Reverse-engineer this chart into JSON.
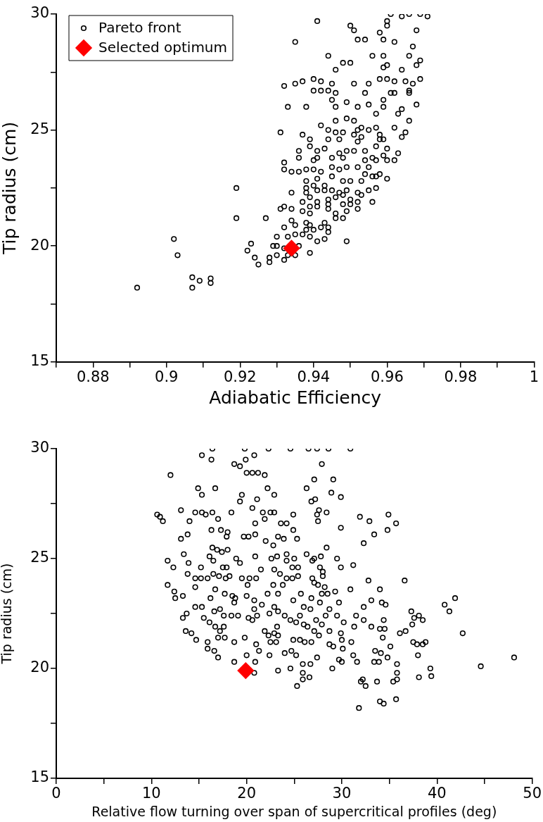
{
  "chart_data": [
    {
      "type": "scatter",
      "xlabel": "Adiabatic Efficiency",
      "ylabel": "Tip radius (cm)",
      "xlim": [
        0.87,
        1
      ],
      "ylim": [
        15,
        30
      ],
      "xticks": [
        {
          "value": 0.87,
          "label": null
        },
        0.88,
        {
          "value": 0.89,
          "label": null
        },
        0.9,
        {
          "value": 0.91,
          "label": null
        },
        0.92,
        {
          "value": 0.93,
          "label": null
        },
        0.94,
        {
          "value": 0.95,
          "label": null
        },
        0.96,
        {
          "value": 0.97,
          "label": null
        },
        0.98,
        {
          "value": 0.99,
          "label": null
        },
        1
      ],
      "yticks": [
        15,
        {
          "value": 17.5,
          "label": null
        },
        20,
        {
          "value": 22.5,
          "label": null
        },
        25,
        {
          "value": 27.5,
          "label": null
        },
        30
      ],
      "legend": "top left",
      "grid": false,
      "series": [
        {
          "name": "Pareto front",
          "color": "#000000",
          "marker": "circle",
          "x": [
            0.961,
            0.964,
            0.966,
            0.969,
            0.971,
            0.96,
            0.96,
            0.941,
            0.95,
            0.951,
            0.958,
            0.968,
            0.935,
            0.952,
            0.954,
            0.959,
            0.962,
            0.967,
            0.944,
            0.956,
            0.959,
            0.966,
            0.969,
            0.948,
            0.95,
            0.946,
            0.959,
            0.96,
            0.964,
            0.968,
            0.969,
            0.932,
            0.935,
            0.937,
            0.94,
            0.942,
            0.945,
            0.951,
            0.955,
            0.958,
            0.96,
            0.962,
            0.965,
            0.967,
            0.966,
            0.94,
            0.942,
            0.944,
            0.946,
            0.954,
            0.961,
            0.962,
            0.966,
            0.933,
            0.938,
            0.945,
            0.946,
            0.949,
            0.952,
            0.955,
            0.957,
            0.959,
            0.959,
            0.963,
            0.964,
            0.968,
            0.966,
            0.942,
            0.944,
            0.946,
            0.949,
            0.951,
            0.952,
            0.953,
            0.955,
            0.957,
            0.958,
            0.962,
            0.965,
            0.931,
            0.937,
            0.939,
            0.946,
            0.948,
            0.944,
            0.947,
            0.951,
            0.953,
            0.952,
            0.958,
            0.959,
            0.964,
            0.936,
            0.939,
            0.941,
            0.943,
            0.947,
            0.949,
            0.951,
            0.954,
            0.957,
            0.96,
            0.963,
            0.936,
            0.94,
            0.941,
            0.945,
            0.948,
            0.954,
            0.956,
            0.957,
            0.959,
            0.96,
            0.962,
            0.932,
            0.932,
            0.934,
            0.936,
            0.938,
            0.94,
            0.942,
            0.945,
            0.947,
            0.949,
            0.952,
            0.955,
            0.954,
            0.958,
            0.96,
            0.938,
            0.941,
            0.945,
            0.948,
            0.95,
            0.953,
            0.956,
            0.957,
            0.938,
            0.94,
            0.943,
            0.934,
            0.938,
            0.941,
            0.943,
            0.945,
            0.947,
            0.949,
            0.952,
            0.953,
            0.955,
            0.957,
            0.939,
            0.941,
            0.944,
            0.946,
            0.948,
            0.95,
            0.952,
            0.937,
            0.939,
            0.941,
            0.944,
            0.948,
            0.95,
            0.956,
            0.931,
            0.932,
            0.934,
            0.937,
            0.939,
            0.944,
            0.946,
            0.949,
            0.952,
            0.919,
            0.919,
            0.927,
            0.934,
            0.932,
            0.935,
            0.938,
            0.939,
            0.943,
            0.946,
            0.948,
            0.938,
            0.94,
            0.942,
            0.944,
            0.93,
            0.933,
            0.935,
            0.937,
            0.939,
            0.941,
            0.943,
            0.944,
            0.949,
            0.902,
            0.903,
            0.923,
            0.922,
            0.929,
            0.93,
            0.932,
            0.936,
            0.939,
            0.924,
            0.925,
            0.928,
            0.928,
            0.93,
            0.932,
            0.933,
            0.935,
            0.892,
            0.907,
            0.907,
            0.909,
            0.912,
            0.912
          ],
          "values": [
            30.0,
            29.9,
            30.0,
            30.0,
            29.9,
            29.7,
            29.5,
            29.7,
            29.5,
            29.3,
            29.2,
            29.3,
            28.8,
            28.9,
            28.9,
            28.9,
            28.8,
            28.6,
            28.2,
            28.2,
            28.2,
            28.2,
            28.0,
            27.9,
            27.9,
            27.6,
            27.7,
            27.8,
            27.6,
            27.8,
            27.2,
            26.9,
            27.0,
            27.1,
            27.2,
            27.1,
            27.0,
            27.0,
            27.0,
            27.2,
            27.2,
            27.1,
            27.1,
            27.0,
            26.7,
            26.7,
            26.7,
            26.7,
            26.6,
            26.6,
            26.6,
            26.6,
            26.6,
            26.0,
            26.0,
            26.3,
            26.0,
            26.2,
            26.0,
            26.1,
            25.7,
            26.0,
            26.3,
            25.7,
            25.9,
            26.1,
            25.4,
            25.2,
            25.0,
            25.4,
            25.5,
            25.4,
            25.0,
            25.1,
            25.0,
            25.1,
            24.8,
            25.1,
            24.9,
            24.9,
            24.8,
            24.6,
            24.9,
            24.9,
            24.6,
            24.6,
            24.8,
            24.7,
            24.5,
            24.6,
            24.6,
            24.7,
            24.1,
            24.3,
            24.1,
            24.2,
            24.0,
            24.1,
            24.1,
            24.1,
            24.3,
            24.2,
            24.0,
            23.8,
            23.7,
            23.8,
            23.8,
            23.8,
            23.7,
            23.8,
            23.7,
            23.9,
            23.7,
            23.7,
            23.6,
            23.3,
            23.2,
            23.2,
            23.3,
            23.3,
            23.2,
            23.4,
            23.3,
            23.4,
            23.4,
            23.4,
            23.1,
            23.1,
            22.9,
            22.8,
            22.9,
            23.0,
            22.8,
            22.8,
            22.8,
            23.0,
            23.0,
            22.5,
            22.6,
            22.6,
            22.3,
            22.3,
            22.4,
            22.4,
            22.4,
            22.3,
            22.4,
            22.3,
            22.2,
            22.4,
            22.5,
            22.1,
            21.9,
            22.0,
            22.1,
            22.2,
            22.0,
            21.9,
            21.9,
            21.7,
            21.7,
            21.8,
            21.8,
            21.8,
            21.9,
            21.6,
            21.7,
            21.6,
            21.5,
            21.4,
            21.6,
            21.4,
            21.5,
            21.6,
            22.5,
            21.2,
            21.2,
            21.1,
            20.8,
            20.9,
            21.0,
            20.9,
            21.0,
            21.2,
            21.2,
            20.7,
            20.7,
            20.8,
            20.8,
            20.4,
            20.4,
            20.5,
            20.5,
            20.4,
            20.2,
            20.3,
            20.6,
            20.2,
            20.3,
            19.6,
            20.1,
            19.8,
            20.0,
            20.0,
            19.9,
            20.0,
            19.7,
            19.5,
            19.2,
            19.5,
            19.3,
            19.6,
            19.4,
            19.6,
            19.6,
            18.2,
            18.65,
            18.2,
            18.5,
            18.6,
            18.4
          ]
        },
        {
          "name": "Selected optimum",
          "color": "#ff0000",
          "marker": "diamond",
          "x": [
            0.934
          ],
          "values": [
            19.9
          ]
        }
      ]
    },
    {
      "type": "scatter",
      "xlabel": "Relative flow turning over span of supercritical profiles (deg)",
      "ylabel": "Tip radius (cm)",
      "xlim": [
        0,
        50
      ],
      "ylim": [
        15,
        30
      ],
      "xticks": [
        0,
        {
          "value": 5,
          "label": null
        },
        10,
        {
          "value": 15,
          "label": null
        },
        20,
        {
          "value": 25,
          "label": null
        },
        30,
        {
          "value": 35,
          "label": null
        },
        40,
        {
          "value": 45,
          "label": null
        },
        50
      ],
      "yticks": [
        15,
        {
          "value": 17.5,
          "label": null
        },
        20,
        {
          "value": 22.5,
          "label": null
        },
        25,
        {
          "value": 27.5,
          "label": null
        },
        30
      ],
      "grid": false,
      "series": [
        {
          "color": "#000000",
          "marker": "circle",
          "x": [
            16.4,
            19.8,
            20.8,
            22.3,
            24.6,
            26.5,
            27.4,
            28.6,
            30.9,
            15.3,
            16.3,
            19.9,
            18.7,
            19.3,
            27.9,
            12.0,
            20.0,
            20.6,
            21.2,
            21.9,
            27.1,
            29.1,
            14.9,
            16.7,
            22.2,
            26.3,
            19.5,
            15.3,
            19.3,
            21.1,
            22.9,
            28.9,
            29.9,
            26.8,
            27.2,
            10.6,
            10.9,
            11.2,
            13.1,
            14.6,
            15.3,
            15.7,
            16.4,
            18.4,
            20.6,
            21.7,
            22.5,
            22.9,
            24.9,
            27.6,
            27.4,
            28.4,
            31.9,
            14.0,
            17.0,
            20.9,
            21.9,
            23.6,
            24.2,
            27.5,
            29.9,
            16.3,
            17.3,
            18.0,
            17.9,
            13.1,
            13.8,
            19.7,
            20.2,
            20.9,
            22.0,
            22.8,
            23.3,
            23.9,
            24.9,
            25.3,
            16.4,
            16.9,
            17.4,
            18.0,
            28.4,
            13.4,
            16.1,
            16.5,
            18.9,
            19.3,
            20.9,
            22.6,
            23.2,
            24.2,
            24.2,
            25.0,
            26.3,
            27.1,
            27.8,
            29.5,
            31.2,
            11.7,
            12.3,
            13.9,
            15.2,
            17.5,
            17.9,
            21.5,
            22.9,
            23.5,
            24.8,
            25.4,
            26.9,
            27.7,
            28.0,
            29.9,
            13.8,
            14.6,
            15.2,
            15.9,
            16.5,
            17.1,
            17.8,
            18.2,
            19.5,
            20.3,
            20.1,
            21.0,
            24.2,
            24.8,
            25.4,
            26.9,
            27.1,
            27.5,
            28.0,
            28.2,
            11.7,
            12.4,
            12.5,
            13.3,
            14.6,
            16.7,
            16.2,
            17.7,
            18.5,
            18.8,
            18.7,
            20.0,
            20.8,
            22.2,
            22.8,
            23.3,
            23.8,
            24.9,
            25.7,
            26.8,
            27.7,
            27.9,
            28.5,
            29.3,
            29.7,
            30.9,
            14.6,
            15.3,
            17.2,
            16.6,
            17.6,
            18.4,
            19.1,
            20.2,
            20.8,
            21.1,
            20.6,
            21.6,
            22.4,
            22.9,
            23.3,
            24.0,
            24.6,
            25.2,
            25.6,
            26.0,
            26.7,
            27.3,
            27.9,
            28.3,
            28.7,
            29.5,
            30.2,
            31.5,
            13.3,
            13.7,
            15.5,
            16.1,
            16.7,
            17.2,
            17.6,
            21.9,
            22.3,
            22.9,
            23.3,
            23.2,
            26.0,
            26.4,
            27.1,
            27.6,
            28.7,
            29.9,
            30.0,
            31.3,
            13.6,
            14.2,
            14.7,
            15.9,
            17.0,
            17.7,
            18.7,
            19.8,
            22.5,
            23.1,
            24.9,
            25.6,
            26.1,
            26.8,
            28.7,
            29.1,
            30.1,
            31.0,
            15.9,
            16.6,
            17.0,
            18.7,
            20.0,
            21.0,
            21.3,
            20.9,
            22.4,
            24.0,
            24.7,
            25.2,
            25.9,
            26.7,
            27.4,
            29.0,
            29.7,
            30.0,
            31.2,
            31.6,
            20.8,
            23.3,
            24.6,
            25.9,
            26.6,
            25.9,
            32.9,
            34.9,
            35.7,
            34.8,
            33.4,
            32.3,
            36.6,
            32.8,
            34.0,
            33.1,
            34.2,
            34.6,
            32.3,
            41.9,
            40.8,
            41.3,
            37.3,
            37.6,
            38.1,
            38.5,
            32.3,
            33.1,
            34.4,
            34.0,
            34.5,
            37.4,
            36.1,
            36.7,
            42.7,
            34.3,
            35.1,
            37.5,
            37.9,
            38.5,
            38.8,
            33.5,
            34.1,
            34.8,
            38.0,
            33.4,
            33.9,
            35.8,
            48.1,
            44.6,
            35.8,
            39.3,
            39.4,
            38.1,
            32.2,
            32.0,
            32.5,
            33.7,
            35.8,
            35.4,
            34.0,
            34.4,
            35.7,
            31.8,
            25.3
          ],
          "values": [
            30.0,
            30.0,
            29.7,
            30.0,
            30.0,
            30.0,
            30.0,
            30.0,
            30.0,
            29.7,
            29.5,
            29.5,
            29.3,
            29.2,
            29.3,
            28.8,
            28.9,
            28.9,
            28.9,
            28.8,
            28.6,
            28.6,
            28.2,
            28.2,
            28.2,
            28.2,
            27.9,
            27.9,
            27.6,
            27.7,
            27.9,
            28.0,
            27.8,
            27.6,
            27.7,
            27.0,
            26.9,
            26.7,
            27.2,
            27.1,
            27.1,
            27.0,
            27.1,
            27.1,
            27.3,
            27.1,
            27.1,
            27.1,
            27.0,
            27.2,
            27.0,
            27.1,
            26.9,
            26.7,
            26.8,
            26.6,
            26.8,
            26.6,
            26.6,
            26.7,
            26.4,
            26.3,
            26.3,
            26.2,
            26.0,
            25.9,
            26.1,
            26.0,
            26.0,
            26.1,
            25.8,
            25.6,
            26.0,
            25.9,
            26.3,
            25.9,
            25.5,
            25.4,
            25.3,
            25.4,
            25.5,
            25.2,
            25.1,
            24.9,
            25.0,
            24.8,
            25.1,
            25.0,
            25.1,
            25.2,
            24.9,
            25.0,
            25.2,
            25.0,
            25.1,
            25.0,
            24.7,
            24.9,
            24.6,
            24.8,
            24.6,
            24.6,
            24.6,
            24.5,
            24.5,
            24.3,
            24.6,
            24.6,
            24.9,
            24.6,
            24.4,
            24.6,
            24.3,
            24.1,
            24.1,
            24.1,
            24.3,
            24.2,
            24.1,
            24.2,
            24.1,
            24.1,
            23.8,
            24.1,
            24.1,
            24.1,
            24.2,
            24.1,
            23.9,
            23.8,
            24.2,
            23.7,
            23.8,
            23.5,
            23.2,
            23.3,
            23.7,
            23.6,
            23.2,
            23.4,
            23.3,
            23.2,
            23.0,
            23.3,
            23.1,
            23.4,
            23.8,
            23.4,
            23.8,
            23.1,
            23.4,
            23.2,
            23.0,
            23.4,
            23.4,
            23.5,
            23.0,
            23.6,
            22.8,
            22.8,
            22.7,
            22.6,
            22.4,
            22.4,
            22.4,
            22.3,
            22.7,
            22.4,
            22.2,
            22.9,
            22.5,
            22.8,
            22.6,
            22.4,
            22.2,
            22.1,
            22.4,
            22.8,
            22.7,
            22.2,
            22.0,
            22.4,
            22.7,
            22.4,
            22.1,
            22.4,
            22.3,
            22.5,
            22.3,
            22.1,
            21.9,
            21.7,
            21.9,
            21.7,
            21.5,
            21.6,
            21.5,
            21.9,
            22.0,
            21.9,
            21.7,
            21.5,
            21.7,
            21.6,
            21.3,
            21.9,
            21.7,
            21.6,
            21.3,
            21.2,
            21.4,
            21.4,
            21.2,
            21.4,
            21.2,
            21.2,
            21.3,
            21.3,
            21.2,
            21.2,
            21.1,
            21.0,
            20.9,
            21.2,
            20.9,
            20.8,
            20.5,
            20.3,
            20.6,
            21.1,
            20.8,
            20.3,
            20.6,
            20.7,
            20.8,
            20.6,
            20.2,
            20.2,
            20.5,
            20.0,
            20.4,
            20.3,
            20.6,
            20.3,
            19.8,
            19.9,
            20.0,
            19.8,
            19.6,
            19.5,
            26.7,
            27.0,
            26.6,
            26.3,
            26.1,
            25.7,
            24.0,
            24.0,
            23.6,
            23.1,
            23.0,
            22.9,
            22.8,
            23.2,
            22.9,
            22.6,
            22.6,
            22.3,
            22.4,
            22.2,
            22.2,
            21.9,
            22.2,
            21.8,
            21.8,
            22.0,
            21.6,
            21.7,
            21.6,
            21.4,
            21.0,
            21.2,
            21.1,
            21.1,
            21.2,
            20.8,
            20.7,
            20.5,
            20.6,
            20.3,
            20.3,
            20.2,
            20.5,
            20.1,
            19.8,
            20.0,
            19.65,
            19.6,
            19.5,
            19.4,
            19.2,
            19.4,
            19.5,
            19.4,
            18.5,
            18.4,
            18.6,
            18.2,
            19.2
          ]
        },
        {
          "color": "#ff0000",
          "marker": "diamond",
          "x": [
            19.9
          ],
          "values": [
            19.9
          ]
        }
      ]
    }
  ]
}
